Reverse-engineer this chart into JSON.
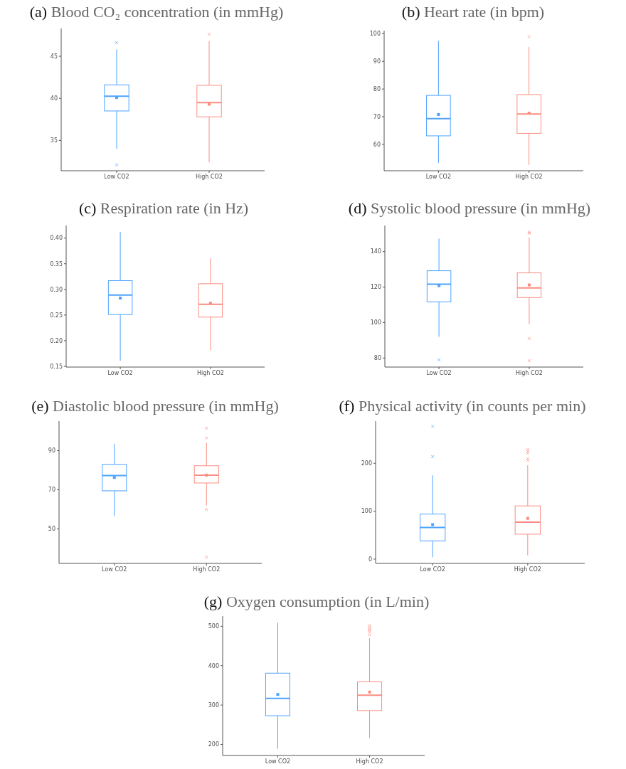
{
  "chart_data": [
    {
      "type": "box",
      "title": "(a) Blood CO₂ concentration (in mmHg)",
      "categories": [
        "Low CO2",
        "High CO2"
      ],
      "colors": [
        "#4da3ff",
        "#fb8c80"
      ],
      "ylim": [
        31.4,
        48.3
      ],
      "yticks": [
        35,
        40,
        45
      ],
      "grid": false,
      "boxes": [
        {
          "low": 34.0,
          "q1": 38.5,
          "median": 40.25,
          "q3": 41.6,
          "high": 45.8,
          "mean": 40.1,
          "outliers": [
            46.6,
            32.1
          ]
        },
        {
          "low": 32.4,
          "q1": 37.8,
          "median": 39.5,
          "q3": 41.55,
          "high": 46.8,
          "mean": 39.3,
          "outliers": [
            47.6
          ]
        }
      ]
    },
    {
      "type": "box",
      "title": "(b) Heart rate (in bpm)",
      "categories": [
        "Low CO2",
        "High CO2"
      ],
      "colors": [
        "#4da3ff",
        "#fb8c80"
      ],
      "ylim": [
        50.5,
        101.1
      ],
      "yticks": [
        60,
        70,
        80,
        90,
        100
      ],
      "grid": false,
      "boxes": [
        {
          "low": 53.3,
          "q1": 63.1,
          "median": 69.3,
          "q3": 77.7,
          "high": 97.4,
          "mean": 70.8
        },
        {
          "low": 52.6,
          "q1": 64.0,
          "median": 71.0,
          "q3": 78.0,
          "high": 95.2,
          "mean": 71.3,
          "outliers": [
            98.9
          ]
        }
      ]
    },
    {
      "type": "box",
      "title": "(c) Respiration rate (in Hz)",
      "categories": [
        "Low CO2",
        "High CO2"
      ],
      "colors": [
        "#4da3ff",
        "#fb8c80"
      ],
      "ylim": [
        0.1486,
        0.4245
      ],
      "yticks": [
        {
          "value": 0.15,
          "label": "0.15"
        },
        {
          "value": 0.2,
          "label": "0.20"
        },
        {
          "value": 0.25,
          "label": "0.25"
        },
        {
          "value": 0.3,
          "label": "0.30"
        },
        {
          "value": 0.35,
          "label": "0.35"
        },
        {
          "value": 0.4,
          "label": "0.40"
        }
      ],
      "grid": false,
      "boxes": [
        {
          "low": 0.161,
          "q1": 0.251,
          "median": 0.289,
          "q3": 0.317,
          "high": 0.412,
          "mean": 0.283
        },
        {
          "low": 0.181,
          "q1": 0.246,
          "median": 0.271,
          "q3": 0.311,
          "high": 0.361,
          "mean": 0.273
        }
      ]
    },
    {
      "type": "box",
      "title": "(d) Systolic blood pressure (in mmHg)",
      "categories": [
        "Low CO2",
        "High CO2"
      ],
      "colors": [
        "#4da3ff",
        "#fb8c80"
      ],
      "ylim": [
        74.9,
        154.7
      ],
      "yticks": [
        80,
        100,
        120,
        140
      ],
      "grid": false,
      "boxes": [
        {
          "low": 92,
          "q1": 111.7,
          "median": 121.6,
          "q3": 129.2,
          "high": 147.3,
          "mean": 120.8,
          "outliers": [
            79
          ]
        },
        {
          "low": 99,
          "q1": 114.1,
          "median": 119.5,
          "q3": 128,
          "high": 148,
          "mean": 121.2,
          "outliers": [
            151,
            150.3,
            91,
            78.5
          ]
        }
      ]
    },
    {
      "type": "box",
      "title": "(e) Diastolic blood pressure (in mmHg)",
      "categories": [
        "Low CO2",
        "High CO2"
      ],
      "colors": [
        "#4da3ff",
        "#fb8c80"
      ],
      "ylim": [
        32.4,
        105.1
      ],
      "yticks": [
        50,
        70,
        90
      ],
      "grid": false,
      "boxes": [
        {
          "low": 56.6,
          "q1": 69.5,
          "median": 77.3,
          "q3": 83,
          "high": 93.5,
          "mean": 76.3
        },
        {
          "low": 62,
          "q1": 73.5,
          "median": 77.5,
          "q3": 82.3,
          "high": 94,
          "mean": 77.5,
          "outliers": [
            101.5,
            96.5,
            60,
            35.6
          ]
        }
      ]
    },
    {
      "type": "box",
      "title": "(f) Physical activity (in counts per min)",
      "categories": [
        "Low CO2",
        "High CO2"
      ],
      "colors": [
        "#4da3ff",
        "#fb8c80"
      ],
      "ylim": [
        -9,
        288
      ],
      "yticks": [
        0,
        100,
        200
      ],
      "grid": false,
      "boxes": [
        {
          "low": 4,
          "q1": 38,
          "median": 66,
          "q3": 94,
          "high": 175,
          "mean": 72,
          "outliers": [
            277,
            214
          ]
        },
        {
          "low": 8,
          "q1": 52,
          "median": 77,
          "q3": 111,
          "high": 196,
          "mean": 85,
          "outliers": [
            229,
            225,
            221,
            210,
            206
          ]
        }
      ]
    },
    {
      "type": "box",
      "title": "(g) Oxygen consumption (in L/min)",
      "categories": [
        "Low CO2",
        "High CO2"
      ],
      "colors": [
        "#4da3ff",
        "#fb8c80"
      ],
      "ylim": [
        172,
        526
      ],
      "yticks": [
        200,
        300,
        400,
        500
      ],
      "grid": false,
      "boxes": [
        {
          "low": 189,
          "q1": 273,
          "median": 317,
          "q3": 381,
          "high": 509,
          "mean": 327
        },
        {
          "low": 216,
          "q1": 286,
          "median": 325,
          "q3": 359,
          "high": 470,
          "mean": 333,
          "outliers": [
            478,
            485,
            490,
            493,
            498,
            502
          ]
        }
      ]
    }
  ]
}
